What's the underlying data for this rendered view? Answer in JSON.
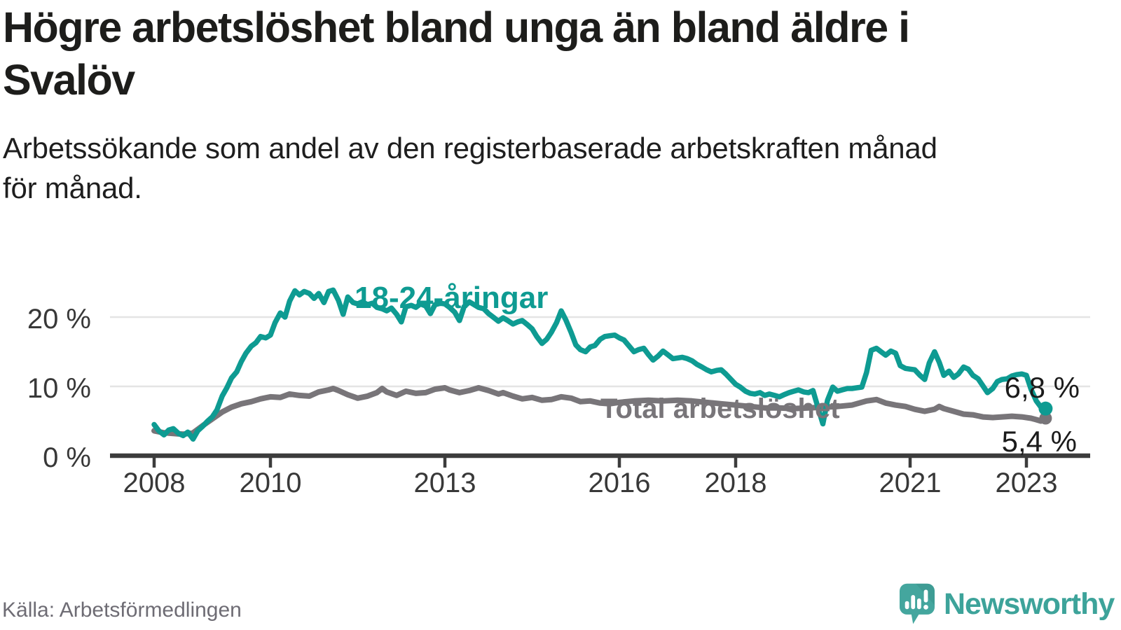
{
  "header": {
    "title": "Högre arbetslöshet bland unga än bland äldre i\nSvalöv",
    "subtitle": "Arbetssökande som andel av den registerbaserade arbetskraften månad\nför månad."
  },
  "footer": {
    "source": "Källa: Arbetsförmedlingen",
    "brand": "Newsworthy"
  },
  "chart_data": {
    "type": "line",
    "title": "Högre arbetslöshet bland unga än bland äldre i Svalöv",
    "subtitle": "Arbetssökande som andel av den registerbaserade arbetskraften månad för månad.",
    "unit": "%",
    "grid": true,
    "legend_position": "inline-labels",
    "x_axis": {
      "range": [
        2007.2,
        2023.75
      ],
      "ticks": [
        {
          "value": 2008,
          "label": "2008"
        },
        {
          "value": 2010,
          "label": "2010"
        },
        {
          "value": 2013,
          "label": "2013"
        },
        {
          "value": 2016,
          "label": "2016"
        },
        {
          "value": 2018,
          "label": "2018"
        },
        {
          "value": 2021,
          "label": "2021"
        },
        {
          "value": 2023,
          "label": "2023"
        }
      ]
    },
    "y_axis": {
      "range": [
        0,
        26
      ],
      "ticks": [
        {
          "value": 0,
          "label": "0 %"
        },
        {
          "value": 10,
          "label": "10 %"
        },
        {
          "value": 20,
          "label": "20 %"
        }
      ]
    },
    "series_labels": {
      "youth": "18-24-åringar",
      "total": "Total arbetslöshet"
    },
    "end_labels": {
      "youth": "6,8 %",
      "total": "5,4 %"
    },
    "colors": {
      "youth": "#0e9b92",
      "total": "#787579",
      "grid": "#e4e4e4",
      "axis": "#3c3c3c",
      "tick_text": "#383838",
      "value_text": "#1b1b1b",
      "logo": "#44a69e"
    },
    "series": [
      {
        "name": "Total arbetslöshet",
        "color": "#787579",
        "width": 8,
        "end_dot": true,
        "final_value": "5,4 %",
        "points": [
          [
            2008.0,
            3.6
          ],
          [
            2008.17,
            3.3
          ],
          [
            2008.33,
            3.2
          ],
          [
            2008.5,
            3.1
          ],
          [
            2008.67,
            3.3
          ],
          [
            2008.83,
            4.3
          ],
          [
            2009.0,
            5.3
          ],
          [
            2009.17,
            6.3
          ],
          [
            2009.33,
            7.0
          ],
          [
            2009.5,
            7.5
          ],
          [
            2009.67,
            7.8
          ],
          [
            2009.83,
            8.2
          ],
          [
            2010.0,
            8.5
          ],
          [
            2010.17,
            8.4
          ],
          [
            2010.33,
            8.9
          ],
          [
            2010.5,
            8.7
          ],
          [
            2010.67,
            8.6
          ],
          [
            2010.83,
            9.2
          ],
          [
            2011.0,
            9.5
          ],
          [
            2011.08,
            9.7
          ],
          [
            2011.17,
            9.4
          ],
          [
            2011.33,
            8.8
          ],
          [
            2011.5,
            8.3
          ],
          [
            2011.67,
            8.6
          ],
          [
            2011.83,
            9.1
          ],
          [
            2011.92,
            9.7
          ],
          [
            2012.0,
            9.2
          ],
          [
            2012.17,
            8.7
          ],
          [
            2012.33,
            9.3
          ],
          [
            2012.5,
            9.0
          ],
          [
            2012.67,
            9.1
          ],
          [
            2012.83,
            9.6
          ],
          [
            2013.0,
            9.8
          ],
          [
            2013.08,
            9.5
          ],
          [
            2013.25,
            9.1
          ],
          [
            2013.42,
            9.4
          ],
          [
            2013.58,
            9.8
          ],
          [
            2013.75,
            9.4
          ],
          [
            2013.92,
            8.9
          ],
          [
            2014.0,
            9.1
          ],
          [
            2014.17,
            8.6
          ],
          [
            2014.33,
            8.2
          ],
          [
            2014.5,
            8.4
          ],
          [
            2014.67,
            8.0
          ],
          [
            2014.83,
            8.1
          ],
          [
            2015.0,
            8.5
          ],
          [
            2015.17,
            8.3
          ],
          [
            2015.33,
            7.8
          ],
          [
            2015.5,
            7.9
          ],
          [
            2015.67,
            7.6
          ],
          [
            2015.83,
            7.5
          ],
          [
            2016.0,
            7.7
          ],
          [
            2016.25,
            7.9
          ],
          [
            2016.5,
            8.0
          ],
          [
            2016.75,
            7.9
          ],
          [
            2017.0,
            8.0
          ],
          [
            2017.25,
            7.9
          ],
          [
            2017.5,
            7.7
          ],
          [
            2017.75,
            7.5
          ],
          [
            2018.0,
            7.3
          ],
          [
            2018.25,
            7.1
          ],
          [
            2018.5,
            6.9
          ],
          [
            2018.75,
            6.9
          ],
          [
            2019.0,
            6.8
          ],
          [
            2019.25,
            6.9
          ],
          [
            2019.5,
            7.0
          ],
          [
            2019.75,
            7.1
          ],
          [
            2020.0,
            7.3
          ],
          [
            2020.25,
            7.9
          ],
          [
            2020.42,
            8.1
          ],
          [
            2020.58,
            7.6
          ],
          [
            2020.75,
            7.3
          ],
          [
            2020.92,
            7.1
          ],
          [
            2021.08,
            6.7
          ],
          [
            2021.25,
            6.4
          ],
          [
            2021.42,
            6.7
          ],
          [
            2021.5,
            7.1
          ],
          [
            2021.58,
            6.8
          ],
          [
            2021.75,
            6.4
          ],
          [
            2021.92,
            6.0
          ],
          [
            2022.08,
            5.9
          ],
          [
            2022.25,
            5.6
          ],
          [
            2022.42,
            5.5
          ],
          [
            2022.58,
            5.6
          ],
          [
            2022.75,
            5.7
          ],
          [
            2022.92,
            5.6
          ],
          [
            2023.08,
            5.4
          ],
          [
            2023.17,
            5.2
          ],
          [
            2023.25,
            5.0
          ],
          [
            2023.33,
            5.4
          ]
        ]
      },
      {
        "name": "18-24-åringar",
        "color": "#0e9b92",
        "width": 7.5,
        "end_dot": true,
        "final_value": "6,8 %",
        "points": [
          [
            2008.0,
            4.5
          ],
          [
            2008.08,
            3.6
          ],
          [
            2008.17,
            3.0
          ],
          [
            2008.25,
            3.7
          ],
          [
            2008.33,
            3.9
          ],
          [
            2008.42,
            3.2
          ],
          [
            2008.5,
            2.9
          ],
          [
            2008.58,
            3.4
          ],
          [
            2008.67,
            2.4
          ],
          [
            2008.75,
            3.6
          ],
          [
            2008.83,
            4.2
          ],
          [
            2008.92,
            5.0
          ],
          [
            2009.0,
            5.6
          ],
          [
            2009.08,
            6.6
          ],
          [
            2009.17,
            8.6
          ],
          [
            2009.25,
            9.8
          ],
          [
            2009.33,
            11.2
          ],
          [
            2009.42,
            12.1
          ],
          [
            2009.5,
            13.6
          ],
          [
            2009.58,
            14.8
          ],
          [
            2009.67,
            15.8
          ],
          [
            2009.75,
            16.3
          ],
          [
            2009.83,
            17.2
          ],
          [
            2009.92,
            17.0
          ],
          [
            2010.0,
            17.4
          ],
          [
            2010.08,
            19.2
          ],
          [
            2010.17,
            20.6
          ],
          [
            2010.25,
            20.0
          ],
          [
            2010.33,
            22.3
          ],
          [
            2010.42,
            23.8
          ],
          [
            2010.5,
            23.2
          ],
          [
            2010.58,
            23.7
          ],
          [
            2010.67,
            23.4
          ],
          [
            2010.75,
            22.7
          ],
          [
            2010.83,
            23.4
          ],
          [
            2010.92,
            22.1
          ],
          [
            2011.0,
            23.7
          ],
          [
            2011.08,
            23.9
          ],
          [
            2011.17,
            22.4
          ],
          [
            2011.25,
            20.4
          ],
          [
            2011.33,
            22.9
          ],
          [
            2011.42,
            22.1
          ],
          [
            2011.5,
            21.9
          ],
          [
            2011.58,
            22.2
          ],
          [
            2011.67,
            21.8
          ],
          [
            2011.75,
            22.0
          ],
          [
            2011.83,
            21.4
          ],
          [
            2011.92,
            21.2
          ],
          [
            2012.0,
            20.9
          ],
          [
            2012.08,
            21.3
          ],
          [
            2012.17,
            20.4
          ],
          [
            2012.25,
            19.3
          ],
          [
            2012.33,
            21.5
          ],
          [
            2012.42,
            21.7
          ],
          [
            2012.5,
            21.4
          ],
          [
            2012.58,
            21.9
          ],
          [
            2012.67,
            21.6
          ],
          [
            2012.75,
            20.5
          ],
          [
            2012.83,
            21.8
          ],
          [
            2012.92,
            22.0
          ],
          [
            2013.0,
            21.9
          ],
          [
            2013.08,
            21.4
          ],
          [
            2013.17,
            20.7
          ],
          [
            2013.25,
            19.5
          ],
          [
            2013.33,
            21.5
          ],
          [
            2013.42,
            22.2
          ],
          [
            2013.5,
            21.8
          ],
          [
            2013.58,
            21.4
          ],
          [
            2013.67,
            21.2
          ],
          [
            2013.75,
            20.5
          ],
          [
            2013.83,
            20.0
          ],
          [
            2013.92,
            19.4
          ],
          [
            2014.0,
            19.9
          ],
          [
            2014.08,
            19.5
          ],
          [
            2014.17,
            19.0
          ],
          [
            2014.25,
            19.3
          ],
          [
            2014.33,
            19.5
          ],
          [
            2014.42,
            18.9
          ],
          [
            2014.5,
            18.3
          ],
          [
            2014.58,
            17.2
          ],
          [
            2014.67,
            16.2
          ],
          [
            2014.75,
            16.8
          ],
          [
            2014.83,
            17.8
          ],
          [
            2014.92,
            19.2
          ],
          [
            2015.0,
            20.9
          ],
          [
            2015.08,
            19.6
          ],
          [
            2015.17,
            17.8
          ],
          [
            2015.25,
            16.0
          ],
          [
            2015.33,
            15.3
          ],
          [
            2015.42,
            15.0
          ],
          [
            2015.5,
            15.7
          ],
          [
            2015.58,
            15.9
          ],
          [
            2015.67,
            16.8
          ],
          [
            2015.75,
            17.2
          ],
          [
            2015.83,
            17.3
          ],
          [
            2015.92,
            17.4
          ],
          [
            2016.0,
            17.0
          ],
          [
            2016.08,
            16.7
          ],
          [
            2016.17,
            15.8
          ],
          [
            2016.25,
            15.0
          ],
          [
            2016.33,
            15.3
          ],
          [
            2016.42,
            15.5
          ],
          [
            2016.5,
            14.6
          ],
          [
            2016.58,
            13.8
          ],
          [
            2016.67,
            14.4
          ],
          [
            2016.75,
            15.1
          ],
          [
            2016.83,
            14.6
          ],
          [
            2016.92,
            14.0
          ],
          [
            2017.0,
            14.1
          ],
          [
            2017.08,
            14.2
          ],
          [
            2017.17,
            14.0
          ],
          [
            2017.25,
            13.7
          ],
          [
            2017.33,
            13.2
          ],
          [
            2017.42,
            12.8
          ],
          [
            2017.5,
            12.4
          ],
          [
            2017.58,
            12.1
          ],
          [
            2017.67,
            12.3
          ],
          [
            2017.75,
            12.4
          ],
          [
            2017.83,
            11.8
          ],
          [
            2017.92,
            11.0
          ],
          [
            2018.0,
            10.3
          ],
          [
            2018.08,
            9.9
          ],
          [
            2018.17,
            9.3
          ],
          [
            2018.25,
            9.0
          ],
          [
            2018.33,
            8.9
          ],
          [
            2018.42,
            9.1
          ],
          [
            2018.5,
            8.7
          ],
          [
            2018.58,
            8.9
          ],
          [
            2018.67,
            8.7
          ],
          [
            2018.75,
            8.5
          ],
          [
            2018.83,
            8.8
          ],
          [
            2018.92,
            9.1
          ],
          [
            2019.0,
            9.3
          ],
          [
            2019.08,
            9.5
          ],
          [
            2019.17,
            9.2
          ],
          [
            2019.25,
            9.1
          ],
          [
            2019.33,
            9.4
          ],
          [
            2019.42,
            6.8
          ],
          [
            2019.5,
            4.6
          ],
          [
            2019.58,
            8.0
          ],
          [
            2019.67,
            9.9
          ],
          [
            2019.75,
            9.3
          ],
          [
            2019.83,
            9.5
          ],
          [
            2019.92,
            9.7
          ],
          [
            2020.0,
            9.7
          ],
          [
            2020.08,
            9.8
          ],
          [
            2020.17,
            9.9
          ],
          [
            2020.25,
            12.0
          ],
          [
            2020.33,
            15.2
          ],
          [
            2020.42,
            15.5
          ],
          [
            2020.5,
            15.0
          ],
          [
            2020.58,
            14.5
          ],
          [
            2020.67,
            15.1
          ],
          [
            2020.75,
            14.8
          ],
          [
            2020.83,
            13.0
          ],
          [
            2020.92,
            12.6
          ],
          [
            2021.0,
            12.5
          ],
          [
            2021.08,
            12.4
          ],
          [
            2021.17,
            11.6
          ],
          [
            2021.25,
            11.0
          ],
          [
            2021.33,
            13.4
          ],
          [
            2021.42,
            15.0
          ],
          [
            2021.5,
            13.5
          ],
          [
            2021.58,
            11.6
          ],
          [
            2021.67,
            12.2
          ],
          [
            2021.75,
            11.3
          ],
          [
            2021.83,
            11.8
          ],
          [
            2021.92,
            12.8
          ],
          [
            2022.0,
            12.5
          ],
          [
            2022.08,
            11.6
          ],
          [
            2022.17,
            11.1
          ],
          [
            2022.25,
            10.1
          ],
          [
            2022.33,
            9.1
          ],
          [
            2022.42,
            9.7
          ],
          [
            2022.5,
            10.7
          ],
          [
            2022.58,
            11.0
          ],
          [
            2022.67,
            11.1
          ],
          [
            2022.75,
            11.5
          ],
          [
            2022.83,
            11.7
          ],
          [
            2022.92,
            11.8
          ],
          [
            2023.0,
            11.6
          ],
          [
            2023.08,
            9.6
          ],
          [
            2023.17,
            7.9
          ],
          [
            2023.25,
            7.0
          ],
          [
            2023.33,
            6.8
          ]
        ]
      }
    ]
  }
}
